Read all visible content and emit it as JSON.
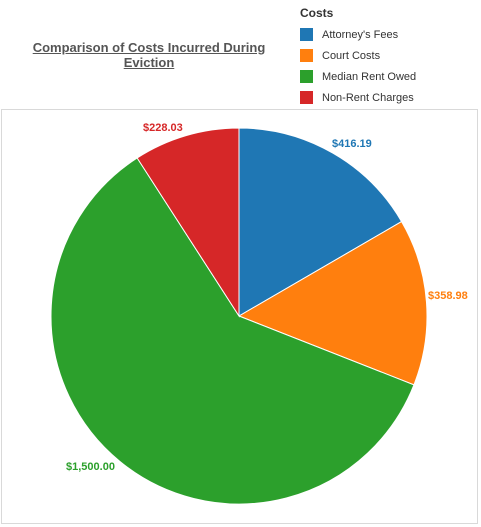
{
  "chart_data": {
    "type": "pie",
    "title": "Comparison of Costs Incurred During Eviction",
    "legend_title": "Costs",
    "legend_position": "top-right",
    "slices": [
      {
        "name": "Attorney's Fees",
        "value": 416.19,
        "label": "$416.19",
        "color": "#1f77b4"
      },
      {
        "name": "Court Costs",
        "value": 358.98,
        "label": "$358.98",
        "color": "#ff7f0e"
      },
      {
        "name": "Median Rent Owed",
        "value": 1500.0,
        "label": "$1,500.00",
        "color": "#2ca02c"
      },
      {
        "name": "Non-Rent Charges",
        "value": 228.03,
        "label": "$228.03",
        "color": "#d62728"
      }
    ]
  }
}
